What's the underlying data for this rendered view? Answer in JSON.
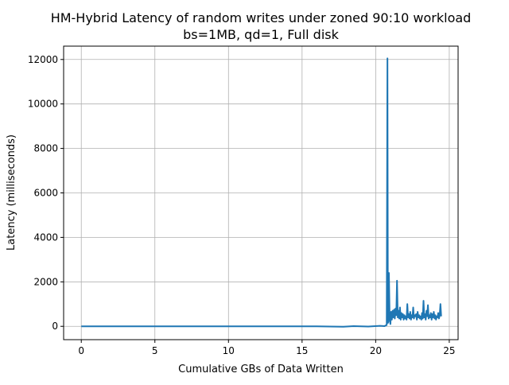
{
  "chart_data": {
    "type": "line",
    "title": "HM-Hybrid Latency of random writes under zoned 90:10 workload",
    "subtitle": "bs=1MB, qd=1, Full disk",
    "xlabel": "Cumulative GBs of Data Written",
    "ylabel": "Latency (milliseconds)",
    "xlim": [
      -1.2,
      25.6
    ],
    "ylim": [
      -600,
      12600
    ],
    "xticks": [
      0,
      5,
      10,
      15,
      20,
      25
    ],
    "yticks": [
      0,
      2000,
      4000,
      6000,
      8000,
      10000,
      12000
    ],
    "grid": true,
    "series": [
      {
        "color": "#1f77b4",
        "x": [
          0,
          2,
          4,
          6,
          8,
          10,
          12,
          14,
          16,
          17.8,
          18.5,
          19.5,
          20.3,
          20.6,
          20.75,
          20.8,
          20.83,
          20.86,
          20.9,
          20.95,
          21.0,
          21.05,
          21.1,
          21.15,
          21.2,
          21.25,
          21.3,
          21.35,
          21.4,
          21.45,
          21.5,
          21.55,
          21.6,
          21.65,
          21.7,
          21.75,
          21.8,
          21.85,
          21.9,
          21.95,
          22.0,
          22.05,
          22.1,
          22.15,
          22.2,
          22.25,
          22.3,
          22.35,
          22.4,
          22.45,
          22.5,
          22.55,
          22.6,
          22.65,
          22.7,
          22.75,
          22.8,
          22.85,
          22.9,
          22.95,
          23.0,
          23.05,
          23.1,
          23.15,
          23.2,
          23.25,
          23.3,
          23.35,
          23.4,
          23.45,
          23.5,
          23.55,
          23.6,
          23.65,
          23.7,
          23.75,
          23.8,
          23.85,
          23.9,
          23.95,
          24.0,
          24.05,
          24.1,
          24.15,
          24.2,
          24.25,
          24.3,
          24.35,
          24.4,
          24.45
        ],
        "y": [
          0,
          0,
          0,
          0,
          0,
          0,
          0,
          0,
          0,
          -20,
          10,
          -10,
          20,
          10,
          60,
          12050,
          150,
          200,
          2400,
          350,
          100,
          650,
          300,
          700,
          400,
          750,
          350,
          800,
          500,
          2050,
          400,
          700,
          350,
          850,
          300,
          600,
          400,
          550,
          300,
          500,
          350,
          450,
          300,
          1000,
          400,
          550,
          350,
          650,
          300,
          500,
          400,
          850,
          350,
          500,
          450,
          550,
          300,
          650,
          400,
          500,
          350,
          450,
          300,
          600,
          350,
          1150,
          400,
          550,
          300,
          700,
          450,
          950,
          350,
          500,
          400,
          600,
          300,
          550,
          400,
          650,
          350,
          500,
          300,
          450,
          400,
          600,
          350,
          500,
          1000,
          450
        ]
      }
    ]
  }
}
